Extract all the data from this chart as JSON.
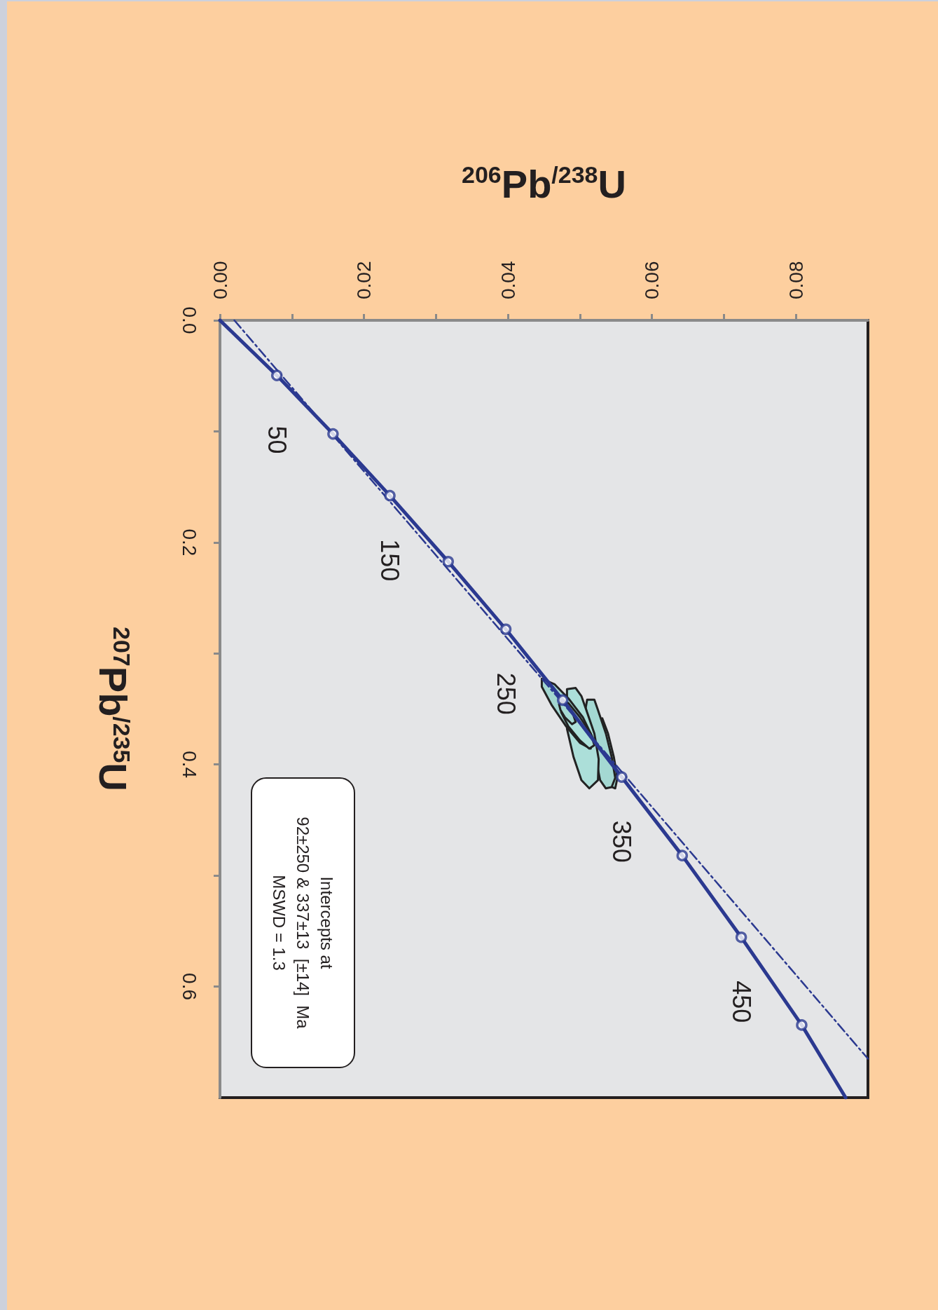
{
  "chart_data": {
    "type": "line",
    "xlabel": "$^{206}$Pb$^{/238}$U",
    "ylabel": "$^{207}$Pb$^{/235}$U",
    "xlim": [
      0,
      0.09
    ],
    "ylim": [
      0.7,
      0
    ],
    "yticks": [
      {
        "value": 0,
        "label": "0.0"
      },
      {
        "value": 0.1,
        "label": null
      },
      {
        "value": 0.2,
        "label": "0.2"
      },
      {
        "value": 0.3,
        "label": null
      },
      {
        "value": 0.4,
        "label": "0.4"
      },
      {
        "value": 0.5,
        "label": null
      },
      {
        "value": 0.6,
        "label": "0.6"
      }
    ],
    "xticks": [
      {
        "value": 0,
        "label": "0.00"
      },
      {
        "value": 0.01,
        "label": null
      },
      {
        "value": 0.02,
        "label": "0.02"
      },
      {
        "value": 0.03,
        "label": null
      },
      {
        "value": 0.04,
        "label": "0.04"
      },
      {
        "value": 0.05,
        "label": null
      },
      {
        "value": 0.06,
        "label": "0.06"
      },
      {
        "value": 0.07,
        "label": null
      },
      {
        "value": 0.08,
        "label": "0.08"
      }
    ],
    "grid": false,
    "annotations": [
      "Intercepts at\n92±250 & 337±13  [±14]  Ma\nMSWD = 1.3",
      {
        "text": "50",
        "x": 0.0079,
        "y": 0.0496
      },
      {
        "text": "150",
        "x": 0.0236,
        "y": 0.1579
      },
      {
        "text": "250",
        "x": 0.0397,
        "y": 0.2782
      },
      {
        "text": "350",
        "x": 0.0558,
        "y": 0.4113
      },
      {
        "text": "450",
        "x": 0.0724,
        "y": 0.5556
      }
    ],
    "series": [
      {
        "type": "area",
        "color": "#a8dcd6",
        "values": [
          0.3584,
          0.3721,
          0.3931,
          0.412,
          0.4215,
          0.4194
        ],
        "x": [
          0.0531,
          0.0539,
          0.0547,
          0.0552,
          0.0549,
          0.0541
        ]
      },
      {
        "type": "area",
        "color": "#a4d8d2",
        "values": [
          0.3416,
          0.3416,
          0.351,
          0.3721,
          0.3931,
          0.412,
          0.4204,
          0.4215,
          0.4141,
          0.3489
        ],
        "x": [
          0.051,
          0.052,
          0.0525,
          0.0536,
          0.0544,
          0.0549,
          0.0544,
          0.0536,
          0.0528,
          0.0508
        ]
      },
      {
        "type": "area",
        "color": "#acdfd9",
        "values": [
          0.3321,
          0.3311,
          0.3384,
          0.3531,
          0.3721,
          0.3952,
          0.4141,
          0.4215,
          0.4141,
          0.3931,
          0.3679
        ],
        "x": [
          0.0482,
          0.0494,
          0.0502,
          0.051,
          0.052,
          0.0526,
          0.0525,
          0.0513,
          0.0502,
          0.0491,
          0.0482
        ]
      },
      {
        "type": "area",
        "color": "#a2d6d0",
        "values": [
          0.3227,
          0.3279,
          0.3405,
          0.3574,
          0.3763,
          0.3857,
          0.3805,
          0.3658,
          0.3468,
          0.33
        ],
        "x": [
          0.0447,
          0.0465,
          0.0484,
          0.0504,
          0.0518,
          0.0515,
          0.05,
          0.0481,
          0.0461,
          0.0447
        ]
      },
      {
        "type": "area",
        "color": "#aee1da",
        "values": [
          0.3437,
          0.3447,
          0.3574,
          0.3721,
          0.3826,
          0.3857,
          0.3784,
          0.3658,
          0.3531
        ],
        "x": [
          0.0474,
          0.0484,
          0.05,
          0.0515,
          0.052,
          0.0513,
          0.05,
          0.0484,
          0.0474
        ]
      },
      {
        "type": "area",
        "color": "#a6dad3",
        "values": [
          0.3458,
          0.3437,
          0.3521,
          0.3616,
          0.3637,
          0.3574,
          0.351
        ],
        "x": [
          0.0471,
          0.0479,
          0.0489,
          0.0494,
          0.0489,
          0.0479,
          0.0473
        ]
      },
      {
        "color": "#2b3990",
        "marker": "none",
        "line_style": "dashed",
        "values": [
          0,
          0.665
        ],
        "x": [
          0.002,
          0.09
        ]
      },
      {
        "color": "#2b3990",
        "marker": "none",
        "line_style": "solid",
        "values": [
          0,
          0.0496,
          0.1023,
          0.1579,
          0.2173,
          0.2782,
          0.342,
          0.4113,
          0.482,
          0.5556,
          0.6346,
          0.7
        ],
        "x": [
          0,
          0.0079,
          0.0157,
          0.0236,
          0.0317,
          0.0397,
          0.0476,
          0.0558,
          0.0642,
          0.0724,
          0.0808,
          0.0869
        ]
      },
      {
        "type": "scatter",
        "color": "#2b3990",
        "marker": "circle",
        "values": [
          0.0496,
          0.1023,
          0.1579,
          0.2173,
          0.2782,
          0.342,
          0.4113,
          0.482,
          0.5556,
          0.6346
        ],
        "x": [
          0.0079,
          0.0157,
          0.0236,
          0.0317,
          0.0397,
          0.0476,
          0.0558,
          0.0642,
          0.0724,
          0.0808
        ]
      }
    ]
  }
}
